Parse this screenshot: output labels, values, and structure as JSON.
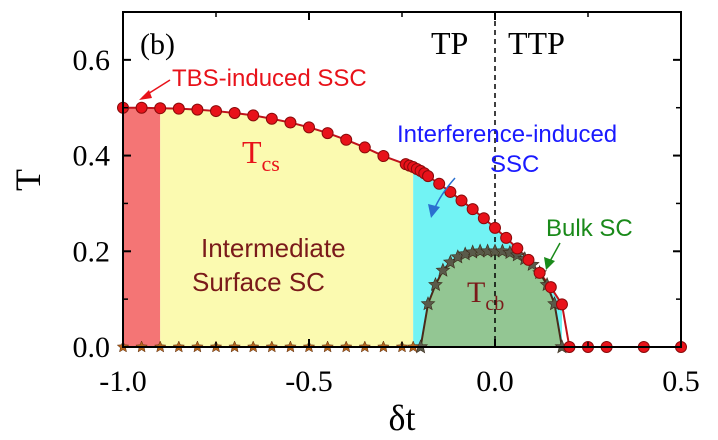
{
  "chart_data": {
    "type": "line",
    "panel_label": "(b)",
    "xlabel": "δt",
    "ylabel": "T",
    "xlim": [
      -1.0,
      0.5
    ],
    "ylim": [
      0.0,
      0.7
    ],
    "x_ticks": [
      -1.0,
      -0.5,
      0.0,
      0.5
    ],
    "x_tick_labels": [
      "-1.0",
      "-0.5",
      "0.0",
      "0.5"
    ],
    "y_ticks": [
      0.0,
      0.2,
      0.4,
      0.6
    ],
    "y_tick_labels": [
      "0.0",
      "0.2",
      "0.4",
      "0.6"
    ],
    "region_boundaries": {
      "tbs_end": -0.9,
      "intermediate_end": -0.22,
      "tp_ttp_divider": 0.0
    },
    "series": [
      {
        "name": "Tcs",
        "color": "#e8121a",
        "marker": "circle",
        "points": [
          [
            -1.0,
            0.5
          ],
          [
            -0.95,
            0.5
          ],
          [
            -0.9,
            0.499
          ],
          [
            -0.85,
            0.498
          ],
          [
            -0.8,
            0.496
          ],
          [
            -0.75,
            0.493
          ],
          [
            -0.7,
            0.489
          ],
          [
            -0.65,
            0.484
          ],
          [
            -0.6,
            0.477
          ],
          [
            -0.55,
            0.469
          ],
          [
            -0.5,
            0.459
          ],
          [
            -0.45,
            0.447
          ],
          [
            -0.4,
            0.433
          ],
          [
            -0.35,
            0.417
          ],
          [
            -0.3,
            0.399
          ],
          [
            -0.24,
            0.382
          ],
          [
            -0.23,
            0.379
          ],
          [
            -0.22,
            0.376
          ],
          [
            -0.21,
            0.372
          ],
          [
            -0.2,
            0.368
          ],
          [
            -0.19,
            0.363
          ],
          [
            -0.18,
            0.357
          ],
          [
            -0.15,
            0.341
          ],
          [
            -0.12,
            0.324
          ],
          [
            -0.09,
            0.306
          ],
          [
            -0.06,
            0.288
          ],
          [
            -0.03,
            0.269
          ],
          [
            0.0,
            0.249
          ],
          [
            0.03,
            0.228
          ],
          [
            0.06,
            0.206
          ],
          [
            0.09,
            0.182
          ],
          [
            0.12,
            0.155
          ],
          [
            0.15,
            0.125
          ],
          [
            0.18,
            0.089
          ],
          [
            0.2,
            0.0
          ],
          [
            0.25,
            0.0
          ],
          [
            0.3,
            0.0
          ],
          [
            0.4,
            0.0
          ],
          [
            0.5,
            0.0
          ]
        ]
      },
      {
        "name": "Tcb",
        "color": "#6b3b2a",
        "marker": "star",
        "points": [
          [
            -0.2,
            0.0
          ],
          [
            -0.18,
            0.09
          ],
          [
            -0.16,
            0.13
          ],
          [
            -0.14,
            0.16
          ],
          [
            -0.12,
            0.177
          ],
          [
            -0.1,
            0.188
          ],
          [
            -0.08,
            0.194
          ],
          [
            -0.06,
            0.198
          ],
          [
            -0.04,
            0.2
          ],
          [
            -0.02,
            0.2
          ],
          [
            0.0,
            0.2
          ],
          [
            0.02,
            0.2
          ],
          [
            0.04,
            0.197
          ],
          [
            0.06,
            0.192
          ],
          [
            0.08,
            0.184
          ],
          [
            0.1,
            0.172
          ],
          [
            0.12,
            0.155
          ],
          [
            0.14,
            0.13
          ],
          [
            0.16,
            0.09
          ],
          [
            0.18,
            0.0
          ]
        ],
        "baseline_markers": [
          -1.0,
          -0.95,
          -0.9,
          -0.85,
          -0.8,
          -0.75,
          -0.7,
          -0.65,
          -0.6,
          -0.55,
          -0.5,
          -0.45,
          -0.4,
          -0.35,
          -0.3,
          -0.25,
          -0.22
        ]
      }
    ],
    "regions": [
      {
        "name": "TBS-induced SSC region",
        "x_range": [
          -1.0,
          -0.9
        ],
        "color": "#f47575"
      },
      {
        "name": "Intermediate Surface SC region",
        "x_range": [
          -0.9,
          -0.22
        ],
        "color": "#fbfab0"
      },
      {
        "name": "Interference-induced SSC region",
        "x_range": [
          -0.22,
          0.18
        ],
        "color": "#72f3f4"
      },
      {
        "name": "Bulk SC dome",
        "color": "#93c693"
      }
    ],
    "annotations": {
      "tp": "TP",
      "ttp": "TTP",
      "tbs_ssc": "TBS-induced SSC",
      "interference_line1": "Interference-induced",
      "interference_line2": "SSC",
      "bulk_sc": "Bulk SC",
      "intermediate_line1": "Intermediate",
      "intermediate_line2": "Surface SC",
      "tcs_main": "T",
      "tcs_sub": "cs",
      "tcb_main": "T",
      "tcb_sub": "cb"
    },
    "colors": {
      "tbs_annotation": "#e8121a",
      "interference_annotation": "#1a1aff",
      "bulk_annotation": "#1a8a1a",
      "intermediate_annotation": "#7a1a1a",
      "tcs_label": "#e8121a",
      "tcb_label": "#7a1a1a"
    }
  }
}
